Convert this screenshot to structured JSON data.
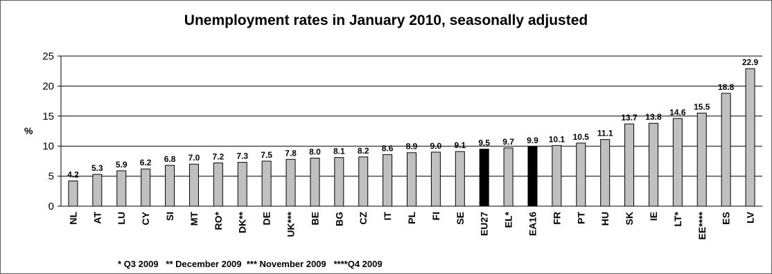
{
  "chart_data": {
    "type": "bar",
    "title": "Unemployment rates in January 2010, seasonally adjusted",
    "ylabel": "%",
    "xlabel": "",
    "ylim": [
      0,
      25
    ],
    "yticks": [
      0,
      5,
      10,
      15,
      20,
      25
    ],
    "grid": true,
    "legend": "none",
    "categories": [
      "NL",
      "AT",
      "LU",
      "CY",
      "SI",
      "MT",
      "RO*",
      "DK**",
      "DE",
      "UK***",
      "BE",
      "BG",
      "CZ",
      "IT",
      "PL",
      "FI",
      "SE",
      "EU27",
      "EL*",
      "EA16",
      "FR",
      "PT",
      "HU",
      "SK",
      "IE",
      "LT*",
      "EE****",
      "ES",
      "LV"
    ],
    "values": [
      4.2,
      5.3,
      5.9,
      6.2,
      6.8,
      7.0,
      7.2,
      7.3,
      7.5,
      7.8,
      8.0,
      8.1,
      8.2,
      8.6,
      8.9,
      9.0,
      9.1,
      9.5,
      9.7,
      9.9,
      10.1,
      10.5,
      11.1,
      13.7,
      13.8,
      14.6,
      15.5,
      18.8,
      22.9
    ],
    "value_labels": [
      "4.2",
      "5.3",
      "5.9",
      "6.2",
      "6.8",
      "7.0",
      "7.2",
      "7.3",
      "7.5",
      "7.8",
      "8.0",
      "8.1",
      "8.2",
      "8.6",
      "8.9",
      "9.0",
      "9.1",
      "9.5",
      "9.7",
      "9.9",
      "10.1",
      "10.5",
      "11.1",
      "13.7",
      "13.8",
      "14.6",
      "15.5",
      "18.8",
      "22.9"
    ],
    "highlighted": [
      "EU27",
      "EA16"
    ],
    "colors": {
      "bar": "#c0c0c0",
      "highlight": "#000000",
      "outline": "#000000",
      "grid": "#000000"
    },
    "footnote": "* Q3 2009   ** December 2009  *** November 2009   ****Q4 2009"
  }
}
